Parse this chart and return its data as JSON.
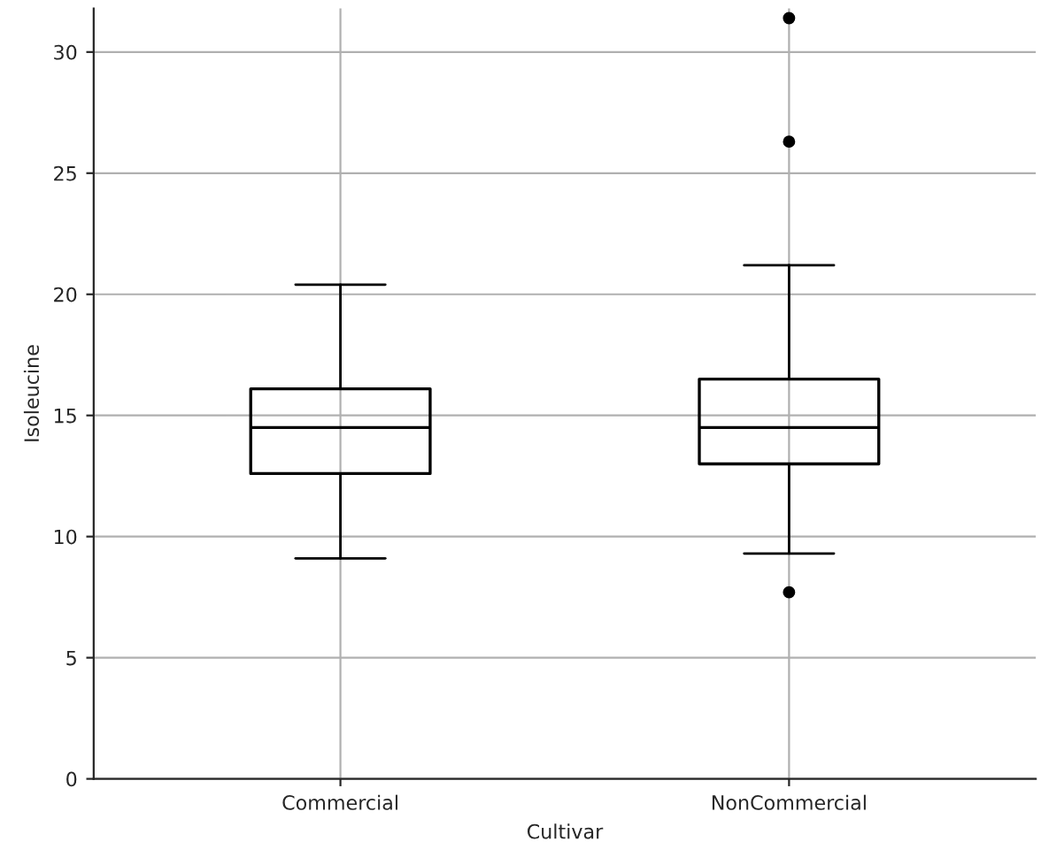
{
  "chart_data": {
    "type": "box",
    "xlabel": "Cultivar",
    "ylabel": "Isoleucine",
    "categories": [
      "Commercial",
      "NonCommercial"
    ],
    "series": [
      {
        "color": "#000000",
        "boxes": [
          {
            "low": 9.1,
            "q1": 12.6,
            "median": 14.5,
            "q3": 16.1,
            "high": 20.4
          },
          {
            "low": 9.3,
            "q1": 13.0,
            "median": 14.5,
            "q3": 16.5,
            "high": 21.2,
            "outliers": [
              7.7,
              26.3,
              31.4
            ]
          }
        ]
      }
    ],
    "ylim": [
      0,
      31.8
    ],
    "yticks": [
      0,
      5,
      10,
      15,
      20,
      25,
      30
    ],
    "grid": true
  }
}
